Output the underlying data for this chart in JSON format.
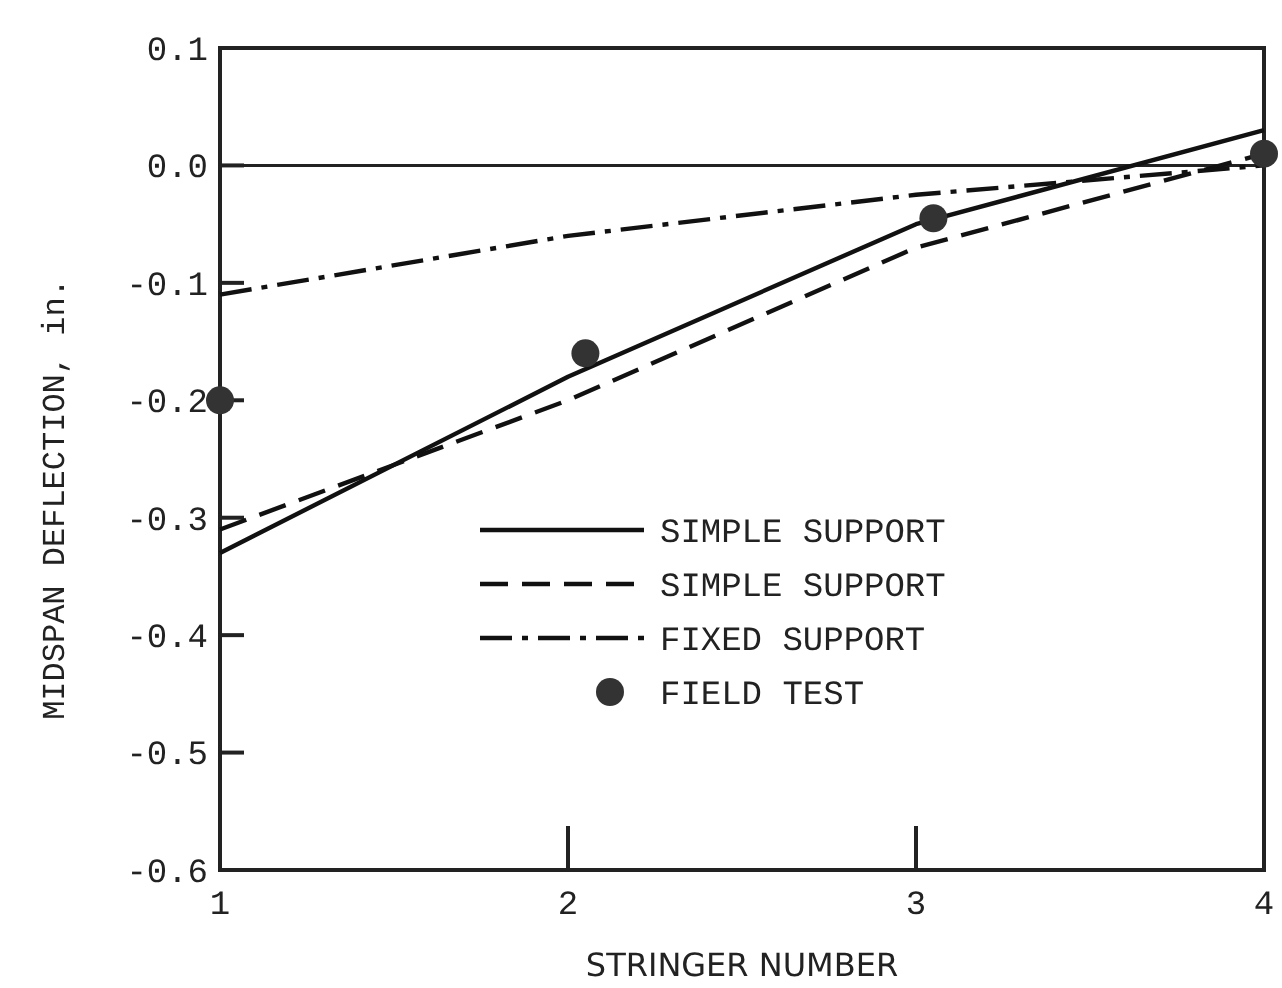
{
  "chart_data": {
    "type": "line",
    "xlabel": "STRINGER NUMBER",
    "ylabel": "MIDSPAN DEFLECTION, in.",
    "x": [
      1,
      2,
      3,
      4
    ],
    "xlim": [
      1,
      4
    ],
    "xticks": [
      1,
      2,
      3,
      4
    ],
    "ylim": [
      -0.6,
      0.1
    ],
    "yticks": [
      {
        "value": -0.6,
        "label": "-0.6"
      },
      {
        "value": -0.5,
        "label": "-0.5"
      },
      {
        "value": -0.4,
        "label": "-0.4"
      },
      {
        "value": -0.3,
        "label": "-0.3"
      },
      {
        "value": -0.2,
        "label": "-0.2"
      },
      {
        "value": -0.1,
        "label": "-0.1"
      },
      {
        "value": 0,
        "label": "0.0"
      },
      {
        "value": 0.1,
        "label": "0.1"
      }
    ],
    "series": [
      {
        "name": "SIMPLE SUPPORT",
        "color": "#111111",
        "values": [
          -0.33,
          -0.18,
          -0.05,
          0.03
        ],
        "line_style": "solid"
      },
      {
        "name": "SIMPLE SUPPORT",
        "color": "#111111",
        "values": [
          -0.31,
          -0.2,
          -0.07,
          0.01
        ],
        "line_style": "dashed"
      },
      {
        "name": "FIXED SUPPORT",
        "color": "#111111",
        "values": [
          -0.11,
          -0.06,
          -0.025,
          0.0
        ],
        "line_style": "dashdot"
      },
      {
        "name": "FIELD TEST",
        "type": "scatter",
        "color": "#333333",
        "x": [
          1,
          2.05,
          3.05,
          4
        ],
        "values": [
          -0.2,
          -0.16,
          -0.045,
          0.01
        ],
        "marker": "circle"
      }
    ],
    "ref_lines": [
      {
        "axis": "y",
        "value": 0,
        "color": "#222222"
      }
    ],
    "legend": "right",
    "grid": false
  }
}
